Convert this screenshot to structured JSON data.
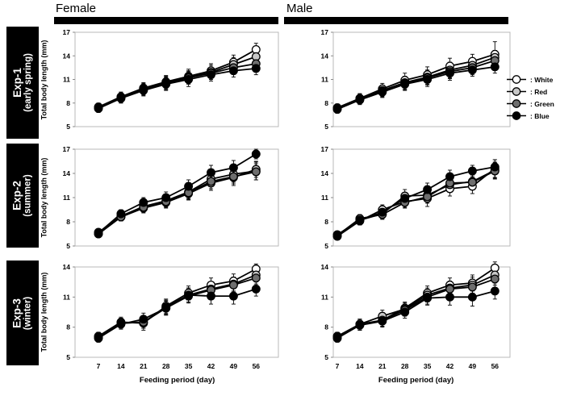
{
  "headers": {
    "female": "Female",
    "male": "Male"
  },
  "rows": [
    {
      "label1": "Exp-1",
      "label2": "(early spring)"
    },
    {
      "label1": "Exp-2",
      "label2": "(summer)"
    },
    {
      "label1": "Exp-3",
      "label2": "(winter)"
    }
  ],
  "axes": {
    "ylabel": "Total body length (mm)",
    "xlabel": "Feeding period (day)"
  },
  "legend": {
    "items": [
      {
        "label": ": White",
        "fill": "#ffffff"
      },
      {
        "label": ": Red",
        "fill": "#c8c8c8"
      },
      {
        "label": ": Green",
        "fill": "#6e6e6e"
      },
      {
        "label": ": Blue",
        "fill": "#000000"
      }
    ]
  },
  "chart_data": [
    {
      "panel": "exp1-female",
      "experiment": "Exp-1 (early spring)",
      "sex": "Female",
      "type": "line",
      "x": [
        7,
        14,
        21,
        28,
        35,
        42,
        49,
        56
      ],
      "xlabel": "Feeding period (day)",
      "ylabel": "Total body length (mm)",
      "ylim": [
        5,
        17
      ],
      "yticks": [
        5,
        8,
        11,
        14,
        17
      ],
      "series": [
        {
          "name": "White",
          "fill": "#ffffff",
          "values": [
            7.5,
            8.8,
            9.9,
            10.7,
            11.4,
            12.1,
            13.2,
            14.8
          ],
          "err": [
            0.5,
            0.6,
            0.7,
            0.8,
            0.9,
            0.9,
            0.9,
            0.8
          ]
        },
        {
          "name": "Red",
          "fill": "#c8c8c8",
          "values": [
            7.4,
            8.7,
            9.8,
            10.6,
            11.3,
            11.9,
            12.9,
            13.9
          ],
          "err": [
            0.5,
            0.6,
            0.7,
            0.8,
            0.8,
            0.9,
            0.9,
            0.8
          ]
        },
        {
          "name": "Green",
          "fill": "#6e6e6e",
          "values": [
            7.4,
            8.6,
            9.7,
            10.5,
            11.2,
            11.8,
            12.5,
            13.0
          ],
          "err": [
            0.5,
            0.6,
            0.7,
            0.8,
            0.8,
            0.8,
            0.8,
            0.8
          ]
        },
        {
          "name": "Blue",
          "fill": "#000000",
          "values": [
            7.3,
            8.6,
            9.6,
            10.4,
            11.0,
            11.6,
            12.1,
            12.4
          ],
          "err": [
            0.5,
            0.6,
            0.7,
            0.8,
            0.9,
            0.8,
            0.8,
            0.8
          ]
        }
      ]
    },
    {
      "panel": "exp1-male",
      "experiment": "Exp-1 (early spring)",
      "sex": "Male",
      "type": "line",
      "x": [
        7,
        14,
        21,
        28,
        35,
        42,
        49,
        56
      ],
      "xlabel": "Feeding period (day)",
      "ylabel": "Total body length (mm)",
      "ylim": [
        5,
        17
      ],
      "yticks": [
        5,
        8,
        11,
        14,
        17
      ],
      "series": [
        {
          "name": "White",
          "fill": "#ffffff",
          "values": [
            7.4,
            8.6,
            9.8,
            10.9,
            11.6,
            12.7,
            13.3,
            14.2
          ],
          "err": [
            0.5,
            0.6,
            0.7,
            0.9,
            1.0,
            1.0,
            0.9,
            1.6
          ]
        },
        {
          "name": "Red",
          "fill": "#c8c8c8",
          "values": [
            7.3,
            8.5,
            9.6,
            10.6,
            11.3,
            12.2,
            12.8,
            13.8
          ],
          "err": [
            0.5,
            0.6,
            0.7,
            0.8,
            0.9,
            1.0,
            0.9,
            0.9
          ]
        },
        {
          "name": "Green",
          "fill": "#6e6e6e",
          "values": [
            7.3,
            8.5,
            9.5,
            10.5,
            11.2,
            12.0,
            12.5,
            13.4
          ],
          "err": [
            0.5,
            0.6,
            0.7,
            0.8,
            0.9,
            0.9,
            0.9,
            0.8
          ]
        },
        {
          "name": "Blue",
          "fill": "#000000",
          "values": [
            7.2,
            8.4,
            9.4,
            10.4,
            11.0,
            11.8,
            12.2,
            12.6
          ],
          "err": [
            0.5,
            0.6,
            0.7,
            0.8,
            0.9,
            0.9,
            0.8,
            0.8
          ]
        }
      ]
    },
    {
      "panel": "exp2-female",
      "experiment": "Exp-2 (summer)",
      "sex": "Female",
      "type": "line",
      "x": [
        7,
        14,
        21,
        28,
        35,
        42,
        49,
        56
      ],
      "xlabel": "Feeding period (day)",
      "ylabel": "Total body length (mm)",
      "ylim": [
        5,
        17
      ],
      "yticks": [
        5,
        8,
        11,
        14,
        17
      ],
      "series": [
        {
          "name": "White",
          "fill": "#ffffff",
          "values": [
            6.7,
            8.7,
            9.9,
            10.6,
            11.7,
            13.3,
            13.9,
            14.3
          ],
          "err": [
            0.4,
            0.5,
            0.6,
            0.7,
            0.8,
            0.9,
            1.0,
            1.1
          ]
        },
        {
          "name": "Red",
          "fill": "#c8c8c8",
          "values": [
            6.5,
            8.6,
            9.7,
            10.4,
            11.5,
            12.8,
            13.5,
            14.5
          ],
          "err": [
            0.4,
            0.5,
            0.6,
            0.7,
            0.8,
            0.9,
            1.0,
            1.0
          ]
        },
        {
          "name": "Green",
          "fill": "#6e6e6e",
          "values": [
            6.5,
            8.6,
            9.8,
            10.5,
            11.6,
            13.0,
            13.6,
            14.2
          ],
          "err": [
            0.4,
            0.5,
            0.6,
            0.7,
            0.8,
            0.9,
            0.9,
            1.0
          ]
        },
        {
          "name": "Blue",
          "fill": "#000000",
          "values": [
            6.6,
            9.0,
            10.4,
            11.0,
            12.4,
            14.1,
            14.7,
            16.4
          ],
          "err": [
            0.4,
            0.5,
            0.6,
            0.7,
            0.8,
            0.9,
            0.9,
            0.6
          ]
        }
      ]
    },
    {
      "panel": "exp2-male",
      "experiment": "Exp-2 (summer)",
      "sex": "Male",
      "type": "line",
      "x": [
        7,
        14,
        21,
        28,
        35,
        42,
        49,
        56
      ],
      "xlabel": "Feeding period (day)",
      "ylabel": "Total body length (mm)",
      "ylim": [
        5,
        17
      ],
      "yticks": [
        5,
        8,
        11,
        14,
        17
      ],
      "series": [
        {
          "name": "White",
          "fill": "#ffffff",
          "values": [
            6.2,
            8.1,
            9.5,
            10.5,
            10.9,
            12.1,
            12.4,
            14.6
          ],
          "err": [
            0.4,
            0.5,
            0.6,
            0.7,
            1.0,
            0.9,
            0.9,
            1.1
          ]
        },
        {
          "name": "Red",
          "fill": "#c8c8c8",
          "values": [
            6.3,
            8.2,
            9.0,
            11.2,
            11.3,
            12.6,
            13.0,
            14.4
          ],
          "err": [
            0.4,
            0.5,
            0.6,
            0.8,
            0.8,
            0.9,
            0.9,
            1.0
          ]
        },
        {
          "name": "Green",
          "fill": "#6e6e6e",
          "values": [
            6.3,
            8.4,
            8.9,
            10.4,
            11.1,
            12.8,
            12.9,
            14.3
          ],
          "err": [
            0.4,
            0.5,
            0.6,
            0.7,
            0.8,
            0.8,
            0.9,
            1.0
          ]
        },
        {
          "name": "Blue",
          "fill": "#000000",
          "values": [
            6.4,
            8.2,
            9.2,
            10.9,
            12.0,
            13.6,
            14.3,
            14.8
          ],
          "err": [
            0.4,
            0.5,
            0.6,
            0.7,
            0.8,
            0.8,
            0.7,
            0.9
          ]
        }
      ]
    },
    {
      "panel": "exp3-female",
      "experiment": "Exp-3 (winter)",
      "sex": "Female",
      "type": "line",
      "x": [
        7,
        14,
        21,
        28,
        35,
        42,
        49,
        56
      ],
      "xlabel": "Feeding period (day)",
      "ylabel": "Total body length (mm)",
      "ylim": [
        5,
        14
      ],
      "yticks": [
        5,
        8,
        11,
        14
      ],
      "series": [
        {
          "name": "White",
          "fill": "#ffffff",
          "values": [
            7.1,
            8.5,
            8.4,
            10.1,
            11.4,
            12.2,
            12.6,
            13.8
          ],
          "err": [
            0.4,
            0.5,
            0.7,
            0.7,
            0.7,
            0.7,
            0.7,
            0.5
          ]
        },
        {
          "name": "Red",
          "fill": "#c8c8c8",
          "values": [
            7.0,
            8.4,
            8.5,
            10.0,
            11.2,
            11.8,
            12.3,
            13.2
          ],
          "err": [
            0.4,
            0.5,
            0.6,
            0.7,
            0.7,
            0.7,
            0.7,
            0.6
          ]
        },
        {
          "name": "Green",
          "fill": "#6e6e6e",
          "values": [
            7.0,
            8.4,
            8.5,
            9.9,
            11.1,
            11.7,
            12.2,
            12.9
          ],
          "err": [
            0.4,
            0.5,
            0.6,
            0.7,
            0.7,
            0.7,
            0.7,
            0.6
          ]
        },
        {
          "name": "Blue",
          "fill": "#000000",
          "values": [
            6.9,
            8.3,
            8.8,
            9.9,
            11.2,
            11.1,
            11.1,
            11.8
          ],
          "err": [
            0.4,
            0.5,
            0.6,
            0.7,
            0.7,
            0.8,
            0.8,
            0.7
          ]
        }
      ]
    },
    {
      "panel": "exp3-male",
      "experiment": "Exp-3 (winter)",
      "sex": "Male",
      "type": "line",
      "x": [
        7,
        14,
        21,
        28,
        35,
        42,
        49,
        56
      ],
      "xlabel": "Feeding period (day)",
      "ylabel": "Total body length (mm)",
      "ylim": [
        5,
        14
      ],
      "yticks": [
        5,
        8,
        11,
        14
      ],
      "series": [
        {
          "name": "White",
          "fill": "#ffffff",
          "values": [
            7.1,
            8.3,
            8.7,
            9.9,
            11.4,
            12.2,
            12.4,
            13.9
          ],
          "err": [
            0.4,
            0.5,
            0.6,
            0.6,
            0.7,
            0.7,
            0.8,
            0.6
          ]
        },
        {
          "name": "Red",
          "fill": "#c8c8c8",
          "values": [
            7.0,
            8.3,
            9.1,
            9.8,
            11.2,
            11.9,
            12.2,
            13.2
          ],
          "err": [
            0.4,
            0.5,
            0.6,
            0.6,
            0.7,
            0.7,
            0.8,
            0.6
          ]
        },
        {
          "name": "Green",
          "fill": "#6e6e6e",
          "values": [
            7.0,
            8.2,
            8.7,
            9.7,
            11.0,
            11.8,
            12.0,
            12.8
          ],
          "err": [
            0.4,
            0.5,
            0.6,
            0.6,
            0.7,
            0.7,
            0.8,
            0.6
          ]
        },
        {
          "name": "Blue",
          "fill": "#000000",
          "values": [
            6.9,
            8.2,
            8.6,
            9.5,
            10.9,
            11.0,
            11.0,
            11.6
          ],
          "err": [
            0.4,
            0.5,
            0.6,
            0.6,
            0.7,
            0.8,
            0.9,
            0.8
          ]
        }
      ]
    }
  ]
}
